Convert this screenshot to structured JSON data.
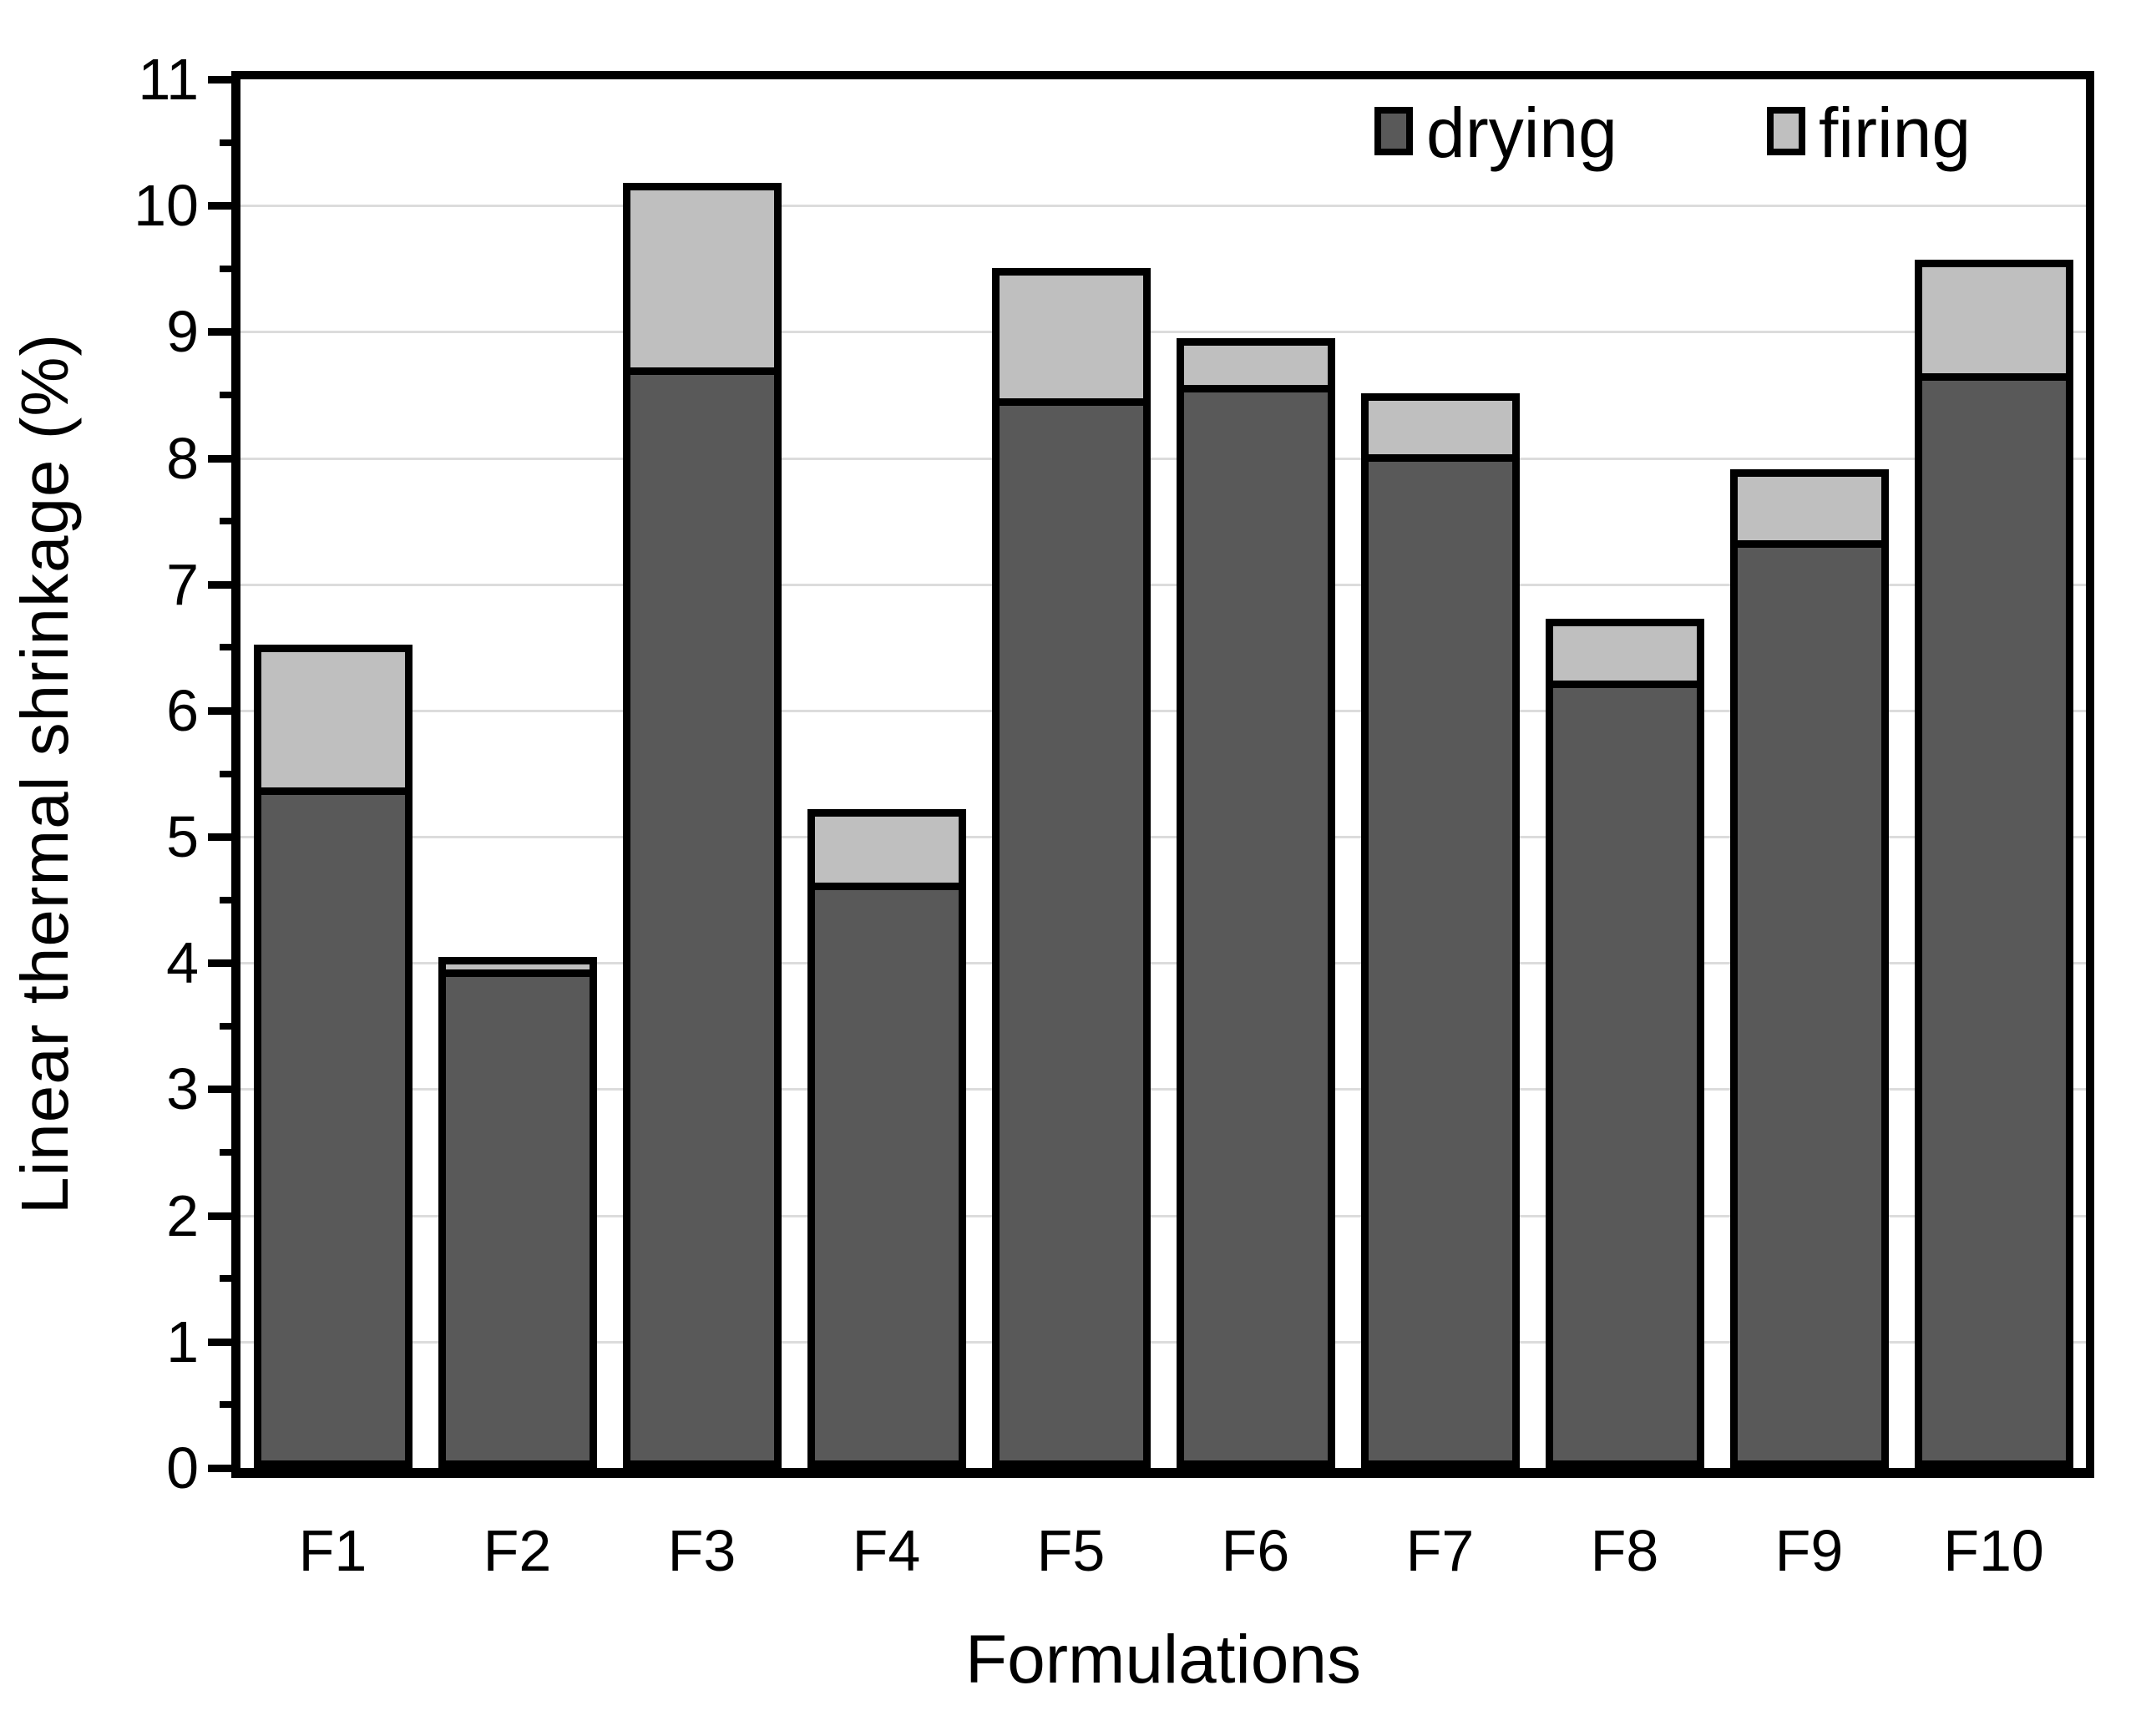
{
  "chart_data": {
    "type": "bar",
    "stacked": true,
    "title": "",
    "xlabel": "Formulations",
    "ylabel": "Linear thermal shrinkage (%)",
    "categories": [
      "F1",
      "F2",
      "F3",
      "F4",
      "F5",
      "F6",
      "F7",
      "F8",
      "F9",
      "F10"
    ],
    "series": [
      {
        "name": "drying",
        "color": "#595959",
        "values": [
          5.39,
          3.95,
          8.72,
          4.64,
          8.47,
          8.58,
          8.03,
          6.24,
          7.35,
          8.67
        ]
      },
      {
        "name": "firing",
        "color": "#bfbfbf",
        "values": [
          1.13,
          0.1,
          1.46,
          0.58,
          1.03,
          0.37,
          0.48,
          0.49,
          0.56,
          0.9
        ]
      }
    ],
    "stack_totals": [
      6.52,
      4.05,
      10.18,
      5.22,
      9.5,
      8.95,
      8.51,
      6.73,
      7.91,
      9.57
    ],
    "ylim": [
      0,
      11
    ],
    "ytick_step": 1,
    "yminor_step": 0.5,
    "y_tick_labels": [
      "0",
      "1",
      "2",
      "3",
      "4",
      "5",
      "6",
      "7",
      "8",
      "9",
      "10",
      "11"
    ],
    "grid": "horizontal-major-on",
    "gridline_color": "#dcdcdc",
    "bar_outline_color": "#000000",
    "axis_color": "#000000",
    "legend_position": "top-right-inside",
    "legend": [
      {
        "label": "drying",
        "color": "#595959"
      },
      {
        "label": "firing",
        "color": "#bfbfbf"
      }
    ]
  }
}
